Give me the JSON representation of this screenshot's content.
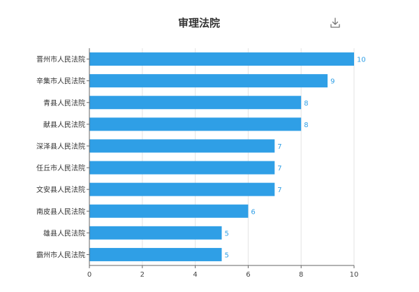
{
  "toolbar": {
    "download_icon": "download-icon"
  },
  "colors": {
    "bar": "#2f9fe6",
    "grid": "#e3e3e3",
    "axis": "#666666"
  },
  "chart_data": {
    "type": "bar",
    "orientation": "horizontal",
    "title": "审理法院",
    "categories": [
      "晋州市人民法院",
      "辛集市人民法院",
      "青县人民法院",
      "献县人民法院",
      "深泽县人民法院",
      "任丘市人民法院",
      "文安县人民法院",
      "南皮县人民法院",
      "雄县人民法院",
      "霸州市人民法院"
    ],
    "values": [
      10,
      9,
      8,
      8,
      7,
      7,
      7,
      6,
      5,
      5
    ],
    "xlim": [
      0,
      10
    ],
    "xticks": [
      0,
      2,
      4,
      6,
      8,
      10
    ],
    "grid": true,
    "data_labels": true
  }
}
